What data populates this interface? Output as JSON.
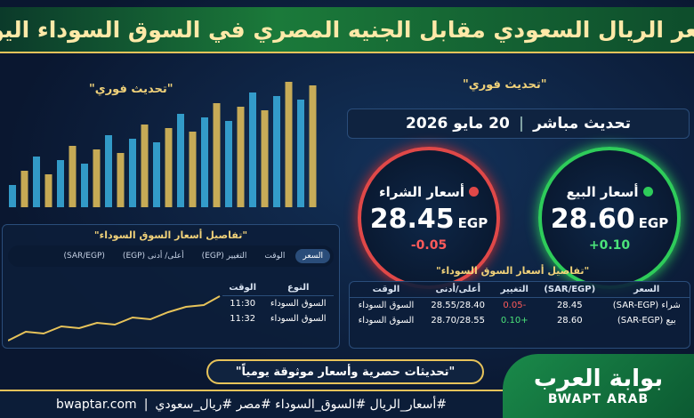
{
  "title": "سعر الريال السعودي مقابل الجنيه المصري في السوق السوداء اليوم",
  "left_badge": "\"تحديث فوري\"",
  "right_badge": "\"تحديث فوري\"",
  "live_line": {
    "label": "تحديث مباشر",
    "date": "20 مايو 2026"
  },
  "sell": {
    "label": "أسعار البيع",
    "price": "28.60",
    "currency": "EGP",
    "change": "+0.10"
  },
  "buy": {
    "label": "أسعار الشراء",
    "price": "28.45",
    "currency": "EGP",
    "change": "-0.05"
  },
  "left_table": {
    "title": "\"تفاصيل أسعار السوق السوداء\"",
    "tabs": [
      "السعر",
      "الوقت",
      "التغيير (EGP)",
      "أعلى/ أدنى (EGP)",
      "(SAR/EGP)"
    ],
    "headers": [
      "النوع",
      "الوقت"
    ],
    "rows": [
      [
        "السوق السوداء",
        "11:30"
      ],
      [
        "السوق السوداء",
        "11:32"
      ]
    ]
  },
  "right_table": {
    "title": "\"تفاصيل أسعار السوق السوداء\"",
    "headers": [
      "السعر",
      "(SAR/EGP)",
      "التغيير",
      "أعلى/أدنى",
      "الوقت"
    ],
    "rows": [
      [
        "شراء (SAR-EGP)",
        "28.45",
        "-0.05",
        "28.55/28.40",
        "السوق السوداء"
      ],
      [
        "بيع (SAR-EGP)",
        "28.60",
        "+0.10",
        "28.70/28.55",
        "السوق السوداء"
      ]
    ]
  },
  "banner": "\"تحديثات حصرية وأسعار موثوقة يومياً\"",
  "hashtags": "#أسعار_الريال #السوق_السوداء #مصر #ريال_سعودي",
  "site": "bwaptar.com",
  "logo": {
    "arabic": "بوابة العرب",
    "latin": "BWAPT ARAB"
  }
}
